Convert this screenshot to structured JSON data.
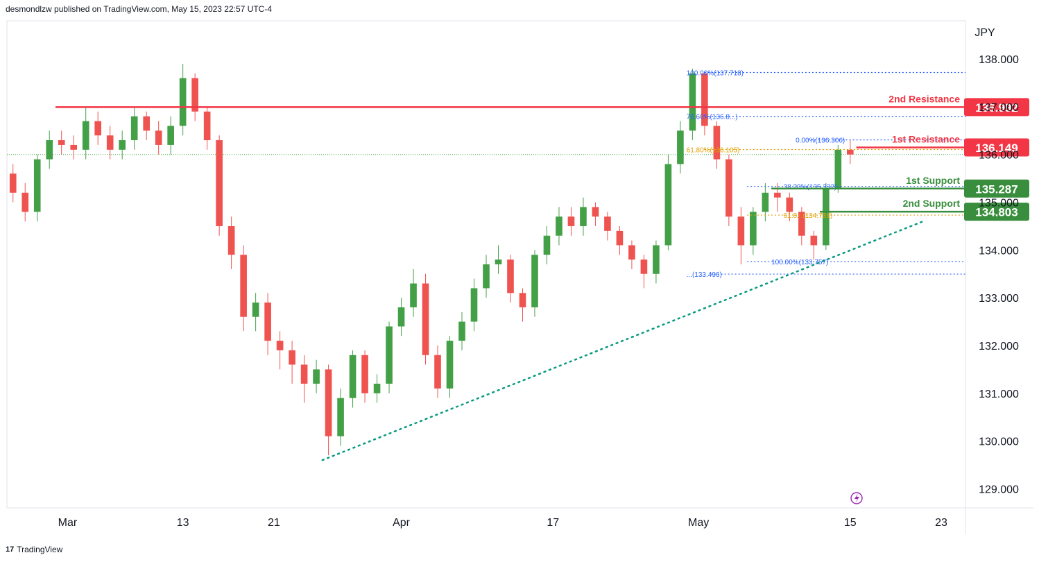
{
  "header": {
    "published": "desmondlzw published on TradingView.com, May 15, 2023 22:57 UTC-4"
  },
  "footer": {
    "logo": "17",
    "brand": "TradingView"
  },
  "colors": {
    "up": "#43a047",
    "down": "#ef5350",
    "resistance": "#f23645",
    "support": "#388e3c",
    "fib_blue": "#2962ff",
    "fib_gold": "#e0a000",
    "trend": "#089981"
  },
  "chart_data": {
    "type": "candlestick",
    "currency": "JPY",
    "ylim": [
      128.6,
      138.8
    ],
    "xlim": [
      0,
      79
    ],
    "y_ticks": [
      138,
      137,
      136,
      135,
      134,
      133,
      132,
      131,
      130,
      129
    ],
    "y_tick_labels": [
      "138.000",
      "137.000",
      "136.000",
      "135.000",
      "134.000",
      "133.000",
      "132.000",
      "131.000",
      "130.000",
      "129.000"
    ],
    "x_ticks": [
      {
        "label": "Mar",
        "x": 5
      },
      {
        "label": "13",
        "x": 14.5
      },
      {
        "label": "21",
        "x": 22
      },
      {
        "label": "Apr",
        "x": 32.5
      },
      {
        "label": "17",
        "x": 45
      },
      {
        "label": "May",
        "x": 57
      },
      {
        "label": "15",
        "x": 69.5
      },
      {
        "label": "23",
        "x": 77
      }
    ],
    "levels": [
      {
        "name": "2nd Resistance",
        "price": 136.992,
        "price_label": "136.992",
        "kind": "resistance",
        "x_start": 4
      },
      {
        "name": "1st Resistance",
        "price": 136.149,
        "price_label": "136.149",
        "kind": "resistance",
        "x_start": 70
      },
      {
        "name": "1st Support",
        "price": 135.287,
        "price_label": "135.287",
        "kind": "support",
        "x_start": 63
      },
      {
        "name": "2nd Support",
        "price": 134.803,
        "price_label": "134.803",
        "kind": "support",
        "x_start": 67
      }
    ],
    "fib_labels": [
      {
        "text": "100.00%(137.718)",
        "price": 137.718,
        "x": 56,
        "color": "blue"
      },
      {
        "text": "78.60%(136.8...)",
        "price": 136.8,
        "x": 56,
        "color": "blue"
      },
      {
        "text": "61.80%(136.105)",
        "price": 136.105,
        "x": 56,
        "color": "gold"
      },
      {
        "text": "0.00%(136.306)",
        "price": 136.306,
        "x": 65,
        "color": "blue"
      },
      {
        "text": "38.20%(135.332)",
        "price": 135.332,
        "x": 64,
        "color": "blue"
      },
      {
        "text": "61.8...(134.731)",
        "price": 134.731,
        "x": 64,
        "color": "gold"
      },
      {
        "text": "100.00%(133.757)",
        "price": 133.757,
        "x": 63,
        "color": "blue"
      },
      {
        "text": "...(133.496)",
        "price": 133.496,
        "x": 56,
        "color": "blue"
      }
    ],
    "fib_lines": [
      {
        "price": 137.718,
        "x1": 57.5,
        "x2": 79,
        "color": "blue"
      },
      {
        "price": 136.8,
        "x1": 57.5,
        "x2": 79,
        "color": "blue"
      },
      {
        "price": 136.105,
        "x1": 57.5,
        "x2": 79,
        "color": "gold"
      },
      {
        "price": 136.306,
        "x1": 66,
        "x2": 79,
        "color": "blue"
      },
      {
        "price": 135.332,
        "x1": 61,
        "x2": 79,
        "color": "blue"
      },
      {
        "price": 134.731,
        "x1": 61,
        "x2": 79,
        "color": "gold"
      },
      {
        "price": 133.757,
        "x1": 61,
        "x2": 79,
        "color": "blue"
      },
      {
        "price": 133.496,
        "x1": 58,
        "x2": 79,
        "color": "blue"
      }
    ],
    "trendline": {
      "x1": 26,
      "y1": 129.6,
      "x2": 75.5,
      "y2": 134.6
    },
    "current_price": 136.0,
    "closes": [
      135.2,
      134.8,
      135.9,
      136.3,
      136.2,
      136.1,
      136.7,
      136.4,
      136.1,
      136.3,
      136.8,
      136.5,
      136.2,
      136.6,
      137.6,
      136.9,
      136.3,
      134.5,
      133.9,
      132.6,
      132.9,
      132.1,
      131.9,
      131.6,
      131.2,
      131.5,
      130.1,
      130.9,
      131.8,
      131.0,
      131.2,
      132.4,
      132.8,
      133.3,
      131.8,
      131.1,
      132.1,
      132.5,
      133.2,
      133.7,
      133.8,
      133.1,
      132.8,
      133.9,
      134.3,
      134.7,
      134.5,
      134.9,
      134.7,
      134.4,
      134.1,
      133.8,
      133.5,
      134.1,
      135.8,
      136.5,
      137.7,
      136.6,
      135.9,
      134.7,
      134.1,
      134.8,
      135.2,
      135.1,
      134.8,
      134.3,
      134.1,
      135.3,
      136.1,
      136.0,
      null,
      null,
      null,
      null,
      null,
      null,
      null,
      null,
      null,
      null
    ],
    "opens": [
      135.6,
      135.2,
      134.8,
      135.9,
      136.3,
      136.2,
      136.1,
      136.7,
      136.4,
      136.1,
      136.3,
      136.8,
      136.5,
      136.2,
      136.6,
      137.6,
      136.9,
      136.3,
      134.5,
      133.9,
      132.6,
      132.9,
      132.1,
      131.9,
      131.6,
      131.2,
      131.5,
      130.1,
      130.9,
      131.8,
      131.0,
      131.2,
      132.4,
      132.8,
      133.3,
      131.8,
      131.1,
      132.1,
      132.5,
      133.2,
      133.7,
      133.8,
      133.1,
      132.8,
      133.9,
      134.3,
      134.7,
      134.5,
      134.9,
      134.7,
      134.4,
      134.1,
      133.8,
      133.5,
      134.1,
      135.8,
      136.5,
      137.7,
      136.6,
      135.9,
      134.7,
      134.1,
      134.8,
      135.2,
      135.1,
      134.8,
      134.3,
      134.1,
      135.3,
      136.1,
      null,
      null,
      null,
      null,
      null,
      null,
      null,
      null,
      null,
      null
    ],
    "highs": [
      135.8,
      135.4,
      136.0,
      136.5,
      136.5,
      136.4,
      137.0,
      136.9,
      136.6,
      136.5,
      137.0,
      136.9,
      136.7,
      136.8,
      137.9,
      137.7,
      137.0,
      136.4,
      134.7,
      134.1,
      133.1,
      133.1,
      132.3,
      132.1,
      131.8,
      131.7,
      131.6,
      131.1,
      131.9,
      131.9,
      131.4,
      132.5,
      133.0,
      133.6,
      133.5,
      132.0,
      132.2,
      132.7,
      133.4,
      133.9,
      134.1,
      133.9,
      133.2,
      134.0,
      134.5,
      134.9,
      134.9,
      135.1,
      135.0,
      134.8,
      134.5,
      134.2,
      133.9,
      134.2,
      136.0,
      136.7,
      137.8,
      137.7,
      136.7,
      136.0,
      134.9,
      134.9,
      135.4,
      135.4,
      135.2,
      134.9,
      134.4,
      135.4,
      136.2,
      136.3,
      null,
      null,
      null,
      null,
      null,
      null,
      null,
      null,
      null,
      null
    ],
    "lows": [
      135.0,
      134.6,
      134.6,
      135.7,
      136.0,
      135.9,
      135.9,
      136.2,
      135.9,
      135.9,
      136.1,
      136.3,
      136.0,
      136.0,
      136.4,
      136.7,
      136.1,
      134.3,
      133.6,
      132.3,
      132.3,
      131.8,
      131.5,
      131.2,
      130.8,
      131.0,
      129.7,
      129.9,
      130.7,
      130.8,
      130.8,
      131.0,
      132.2,
      132.6,
      131.6,
      130.9,
      130.9,
      131.9,
      132.3,
      133.0,
      133.5,
      132.9,
      132.5,
      132.6,
      133.7,
      134.1,
      134.3,
      134.3,
      134.5,
      134.2,
      133.9,
      133.6,
      133.2,
      133.3,
      134.0,
      135.6,
      136.3,
      136.4,
      135.7,
      134.5,
      133.7,
      133.9,
      134.6,
      134.8,
      134.6,
      134.1,
      133.8,
      134.0,
      135.2,
      135.8,
      null,
      null,
      null,
      null,
      null,
      null,
      null,
      null,
      null,
      null
    ]
  }
}
